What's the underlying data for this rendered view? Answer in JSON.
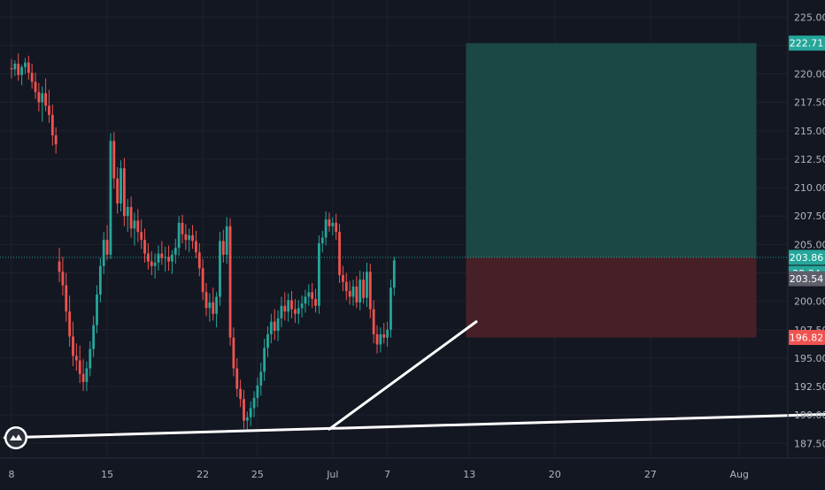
{
  "chart_data": {
    "type": "candlestick",
    "ylim": [
      186.2,
      226.5
    ],
    "y_ticks": [
      187.5,
      190,
      192.5,
      195,
      197.5,
      200,
      202.5,
      205,
      207.5,
      210,
      212.5,
      215,
      217.5,
      220,
      222.5,
      225
    ],
    "y_tick_labels": [
      "187.50",
      "190.00",
      "192.50",
      "195.00",
      "197.50",
      "200.00",
      "202.50",
      "205.00",
      "207.50",
      "210.00",
      "212.50",
      "215.00",
      "217.50",
      "220.00",
      "222.50",
      "225.00"
    ],
    "x_ticks": [
      {
        "label": "8",
        "bar": 0
      },
      {
        "label": "15",
        "bar": 28
      },
      {
        "label": "22",
        "bar": 56
      },
      {
        "label": "25",
        "bar": 72
      },
      {
        "label": "Jul",
        "bar": 94
      },
      {
        "label": "7",
        "bar": 110
      },
      {
        "label": "13",
        "bar": 134
      },
      {
        "label": "20",
        "bar": 159
      },
      {
        "label": "27",
        "bar": 187
      },
      {
        "label": "Aug",
        "bar": 213
      }
    ],
    "candles": [
      [
        220.5,
        221.3,
        219.6,
        220.4
      ],
      [
        220.4,
        221.2,
        219.8,
        220.9
      ],
      [
        220.9,
        221.8,
        219.4,
        219.9
      ],
      [
        219.9,
        220.8,
        219,
        220.6
      ],
      [
        220.6,
        221.4,
        220,
        221
      ],
      [
        221,
        221.6,
        219.5,
        220.1
      ],
      [
        220.1,
        220.9,
        218.7,
        219.3
      ],
      [
        219.3,
        220.1,
        217.8,
        218.4
      ],
      [
        218.4,
        219.2,
        216.7,
        217.5
      ],
      [
        217.5,
        218.9,
        215.8,
        218.3
      ],
      [
        218.3,
        219.6,
        216.7,
        217.2
      ],
      [
        217.2,
        218.6,
        215.7,
        216.4
      ],
      [
        216.4,
        217.3,
        213.7,
        214.6
      ],
      [
        214.6,
        215.3,
        213,
        213.8
      ],
      [
        203.5,
        204.7,
        201.7,
        202.6
      ],
      [
        202.6,
        203.9,
        200.5,
        201.4
      ],
      [
        201.4,
        202.5,
        198.2,
        199.1
      ],
      [
        199.1,
        200.5,
        196,
        196.9
      ],
      [
        196.9,
        198.2,
        194.3,
        195.2
      ],
      [
        195.2,
        196.3,
        193.9,
        194.8
      ],
      [
        194.8,
        196.1,
        192.8,
        193.6
      ],
      [
        193.6,
        194.9,
        192.1,
        192.9
      ],
      [
        192.9,
        194.7,
        192.1,
        194.1
      ],
      [
        194.1,
        196.5,
        193.4,
        195.8
      ],
      [
        195.8,
        198.7,
        195.1,
        197.9
      ],
      [
        197.9,
        201.4,
        197.2,
        200.6
      ],
      [
        200.6,
        203.8,
        199.9,
        203.1
      ],
      [
        203.1,
        206.1,
        202.4,
        205.4
      ],
      [
        205.4,
        206.7,
        203.6,
        204.1
      ],
      [
        204.1,
        214.8,
        203.7,
        214.1
      ],
      [
        214.1,
        214.9,
        209.9,
        210.8
      ],
      [
        210.8,
        211.8,
        207.7,
        208.6
      ],
      [
        208.6,
        212.4,
        207.9,
        211.7
      ],
      [
        211.7,
        212.6,
        206.6,
        207.5
      ],
      [
        207.5,
        209,
        206.1,
        208.3
      ],
      [
        208.3,
        209.2,
        205.6,
        206.4
      ],
      [
        206.4,
        207.8,
        204.9,
        207.1
      ],
      [
        207.1,
        208.1,
        205.2,
        206.1
      ],
      [
        206.1,
        207.2,
        204.6,
        205.4
      ],
      [
        205.4,
        206.4,
        203.4,
        204.2
      ],
      [
        204.2,
        205.1,
        202.8,
        203.5
      ],
      [
        203.5,
        204.4,
        202.3,
        203.1
      ],
      [
        203.1,
        204.2,
        202,
        203.4
      ],
      [
        203.4,
        204.9,
        202.7,
        204.2
      ],
      [
        204.2,
        205.3,
        203.2,
        203.8
      ],
      [
        203.8,
        204.8,
        202.6,
        203.9
      ],
      [
        203.9,
        204.9,
        202.7,
        203.5
      ],
      [
        203.5,
        204.5,
        202.4,
        204.1
      ],
      [
        204.1,
        205.5,
        203.3,
        204.7
      ],
      [
        204.7,
        207.5,
        204,
        206.9
      ],
      [
        206.9,
        207.6,
        205.1,
        205.9
      ],
      [
        205.9,
        206.8,
        204.5,
        205.4
      ],
      [
        205.4,
        206.4,
        204.3,
        205.8
      ],
      [
        205.8,
        206.7,
        204.6,
        205.3
      ],
      [
        205.3,
        206.2,
        203.8,
        204.3
      ],
      [
        204.3,
        205.1,
        202.2,
        202.9
      ],
      [
        202.9,
        203.7,
        200.1,
        200.8
      ],
      [
        200.8,
        201.6,
        198.7,
        199.4
      ],
      [
        199.4,
        200.7,
        198.2,
        199.9
      ],
      [
        199.9,
        201.2,
        198.3,
        198.9
      ],
      [
        198.9,
        200.8,
        197.7,
        200.4
      ],
      [
        200.4,
        206.1,
        199.6,
        205.3
      ],
      [
        205.3,
        206.3,
        203.4,
        204.1
      ],
      [
        204.1,
        207.4,
        203.3,
        206.6
      ],
      [
        206.6,
        207.3,
        196.1,
        196.8
      ],
      [
        196.8,
        197.7,
        193.4,
        194.1
      ],
      [
        194.1,
        195,
        191.6,
        192.3
      ],
      [
        192.3,
        193.1,
        190.7,
        191.4
      ],
      [
        191.4,
        192.2,
        188.8,
        189.5
      ],
      [
        189.5,
        190.3,
        188.6,
        189.8
      ],
      [
        189.8,
        191.2,
        189,
        190.6
      ],
      [
        190.6,
        192.1,
        189.8,
        191.5
      ],
      [
        191.5,
        193.3,
        190.7,
        192.6
      ],
      [
        192.6,
        194.6,
        191.7,
        193.8
      ],
      [
        193.8,
        196.7,
        193,
        195.9
      ],
      [
        195.9,
        197.8,
        195.1,
        197.1
      ],
      [
        197.1,
        198.9,
        196.3,
        198.2
      ],
      [
        198.2,
        199.3,
        196.6,
        197.4
      ],
      [
        197.4,
        199.2,
        196.5,
        198.5
      ],
      [
        198.5,
        200.4,
        197.7,
        199.6
      ],
      [
        199.6,
        200.8,
        198.3,
        199.1
      ],
      [
        199.1,
        200.7,
        198.2,
        200.1
      ],
      [
        200.1,
        200.9,
        198.5,
        199.3
      ],
      [
        199.3,
        200.2,
        198.1,
        198.9
      ],
      [
        198.9,
        200.1,
        198,
        199.4
      ],
      [
        199.4,
        200.5,
        198.6,
        199.8
      ],
      [
        199.8,
        201,
        199,
        200.4
      ],
      [
        200.4,
        201.5,
        199.6,
        200.8
      ],
      [
        200.8,
        201.6,
        199.4,
        200.2
      ],
      [
        200.2,
        201.1,
        199,
        199.6
      ],
      [
        199.6,
        205.8,
        198.9,
        205.1
      ],
      [
        205.1,
        206.2,
        204.3,
        205.6
      ],
      [
        205.6,
        207.9,
        204.9,
        207.2
      ],
      [
        207.2,
        207.8,
        206.1,
        206.6
      ],
      [
        206.6,
        207.4,
        205.8,
        206.9
      ],
      [
        206.9,
        207.7,
        205.4,
        206.1
      ],
      [
        206.1,
        206.8,
        201.6,
        202.3
      ],
      [
        202.3,
        203.1,
        200.9,
        201.7
      ],
      [
        201.7,
        202.5,
        200.1,
        200.9
      ],
      [
        200.9,
        201.8,
        199.7,
        200.4
      ],
      [
        200.4,
        201.9,
        199.6,
        201.3
      ],
      [
        201.3,
        202.2,
        199.4,
        199.9
      ],
      [
        199.9,
        202.7,
        199.2,
        201.9
      ],
      [
        201.9,
        202.6,
        199.8,
        200.3
      ],
      [
        200.3,
        203.4,
        199.5,
        202.6
      ],
      [
        202.6,
        203.3,
        198.5,
        199.3
      ],
      [
        199.3,
        200.1,
        196.3,
        197.1
      ],
      [
        197.1,
        197.9,
        195.4,
        196.2
      ],
      [
        196.2,
        197.7,
        195.5,
        197.1
      ],
      [
        197.1,
        198.1,
        196.3,
        196.8
      ],
      [
        196.8,
        198.2,
        196,
        197.5
      ],
      [
        197.5,
        201.9,
        196.8,
        201.2
      ],
      [
        201.2,
        203.9,
        200.5,
        203.6
      ]
    ],
    "trendlines": [
      {
        "from": [
          -2,
          188.0
        ],
        "to": [
          250,
          190.15
        ]
      },
      {
        "from": [
          93,
          188.75
        ],
        "to": [
          136,
          198.2
        ]
      }
    ],
    "position": {
      "entry": 203.86,
      "target": 222.71,
      "stop": 196.82,
      "from_bar": 133,
      "to_bar": 218
    },
    "price_label": "203.86",
    "countdown_label": "38:34",
    "crosshair_label": "203.54",
    "target_label": "222.71",
    "stop_label": "196.82"
  },
  "colors": {
    "background": "#131722",
    "grid": "#1e222d",
    "up": "#26a69a",
    "down": "#ef5350",
    "axis_text": "#b2b5be",
    "target_zone": "#1b4a47",
    "stop_zone": "#4a2128",
    "trendline": "#ffffff"
  },
  "logo_icon": "tradingview-logo-icon"
}
